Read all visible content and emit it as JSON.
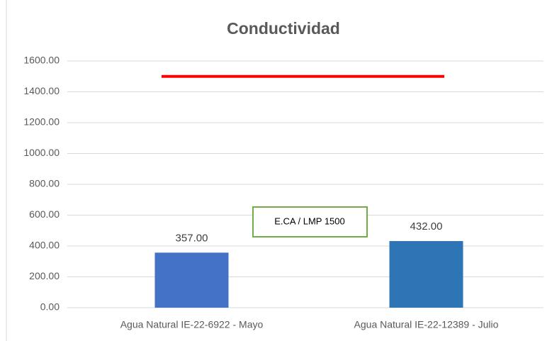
{
  "chart_data": {
    "type": "bar",
    "title": "Conductividad",
    "categories": [
      "Agua Natural IE-22-6922 - Mayo",
      "Agua Natural IE-22-12389 - Julio"
    ],
    "values": [
      357,
      432
    ],
    "value_labels": [
      "357.00",
      "432.00"
    ],
    "colors": [
      "#4472c4",
      "#2e75b6"
    ],
    "ylim": [
      0,
      1600
    ],
    "yticks": [
      {
        "value": 0,
        "label": "0.00"
      },
      {
        "value": 200,
        "label": "200.00"
      },
      {
        "value": 400,
        "label": "400.00"
      },
      {
        "value": 600,
        "label": "600.00"
      },
      {
        "value": 800,
        "label": "800.00"
      },
      {
        "value": 1000,
        "label": "1000.00"
      },
      {
        "value": 1200,
        "label": "1200.00"
      },
      {
        "value": 1400,
        "label": "1400.00"
      },
      {
        "value": 1600,
        "label": "1600.00"
      }
    ],
    "grid": true,
    "reference_line": {
      "value": 1500,
      "color": "#ff0000"
    },
    "annotation": "E.CA / LMP 1500"
  }
}
